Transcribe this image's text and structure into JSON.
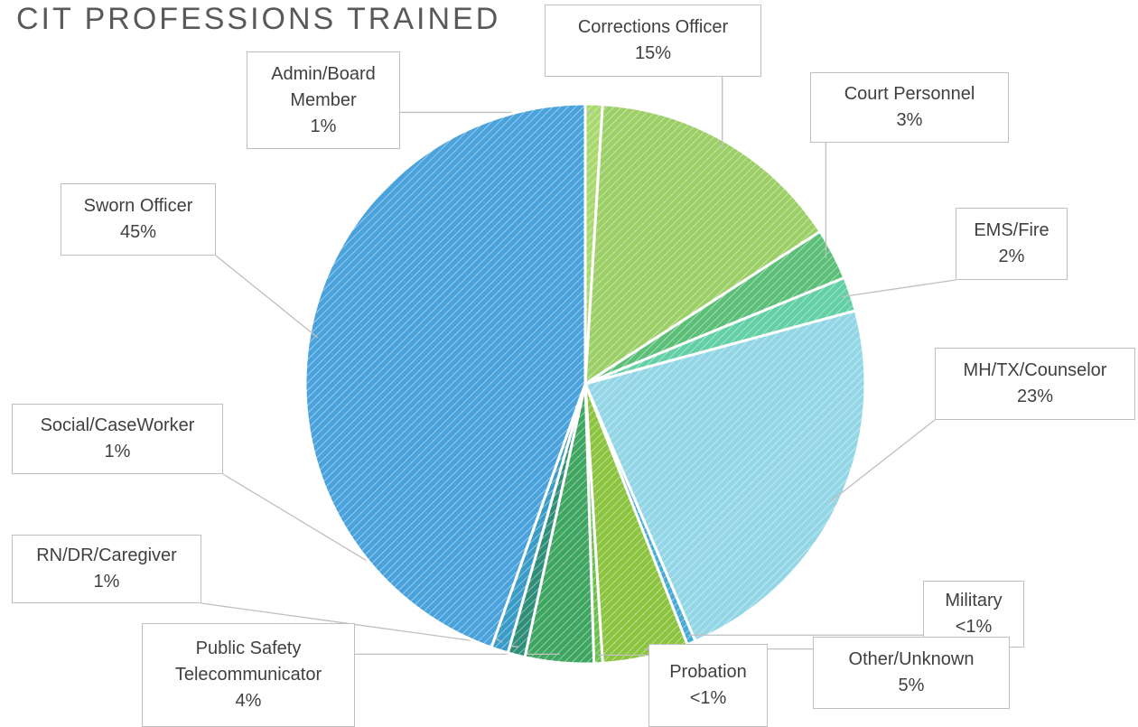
{
  "chart_data": {
    "type": "pie",
    "title": "CIT PROFESSIONS TRAINED",
    "categories": [
      "Admin/Board Member",
      "Corrections Officer",
      "Court Personnel",
      "EMS/Fire",
      "MH/TX/Counselor",
      "Military",
      "Other/Unknown",
      "Probation",
      "Public Safety Telecommunicator",
      "RN/DR/Caregiver",
      "Social/CaseWorker",
      "Sworn Officer"
    ],
    "values": [
      1,
      15,
      3,
      2,
      23,
      0.5,
      5,
      0.5,
      4,
      1,
      1,
      45
    ],
    "value_labels": [
      "1%",
      "15%",
      "3%",
      "2%",
      "23%",
      "<1%",
      "5%",
      "<1%",
      "4%",
      "1%",
      "1%",
      "45%"
    ],
    "colors": [
      "#a9d86c",
      "#9ccf66",
      "#5cbf78",
      "#62cfa6",
      "#93d6e6",
      "#46aad6",
      "#8cc43f",
      "#6abf4b",
      "#3fa661",
      "#2f8e78",
      "#3a9cc6",
      "#4aa2dc"
    ]
  }
}
